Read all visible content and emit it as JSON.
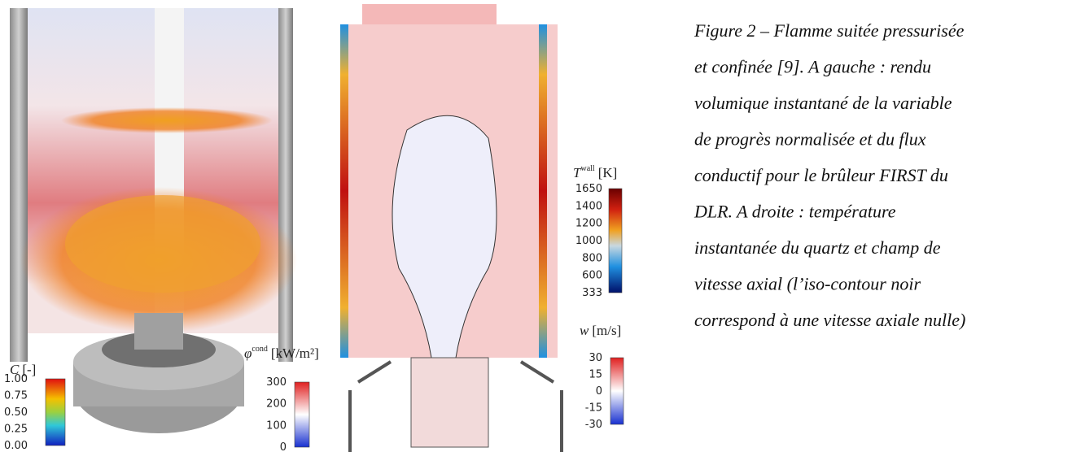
{
  "figure": {
    "caption_lines": [
      "Figure 2 – Flamme suitée pressurisée",
      "et confinée [9]. A gauche : rendu",
      "volumique instantané de la variable",
      "de progrès normalisée et du flux",
      "conductif pour le brûleur FIRST du",
      "DLR. A droite : température",
      "instantanée du quartz et champ de",
      "vitesse axial (l’iso-contour noir",
      "correspond à une vitesse axiale nulle)"
    ],
    "colorbars": [
      {
        "symbol": "C",
        "superscript": "",
        "unit": "[-]",
        "ticks": [
          "1.00",
          "0.75",
          "0.50",
          "0.25",
          "0.00"
        ]
      },
      {
        "symbol": "φ",
        "superscript": "cond",
        "unit": "[kW/m²]",
        "ticks": [
          "300",
          "200",
          "100",
          "0"
        ]
      },
      {
        "symbol": "T",
        "superscript": "wall",
        "unit": "[K]",
        "ticks": [
          "1650",
          "1400",
          "1200",
          "1000",
          "800",
          "600",
          "333"
        ]
      },
      {
        "symbol": "w",
        "superscript": "",
        "unit": "[m/s]",
        "ticks": [
          "30",
          "15",
          "0",
          "-15",
          "-30"
        ]
      }
    ]
  }
}
